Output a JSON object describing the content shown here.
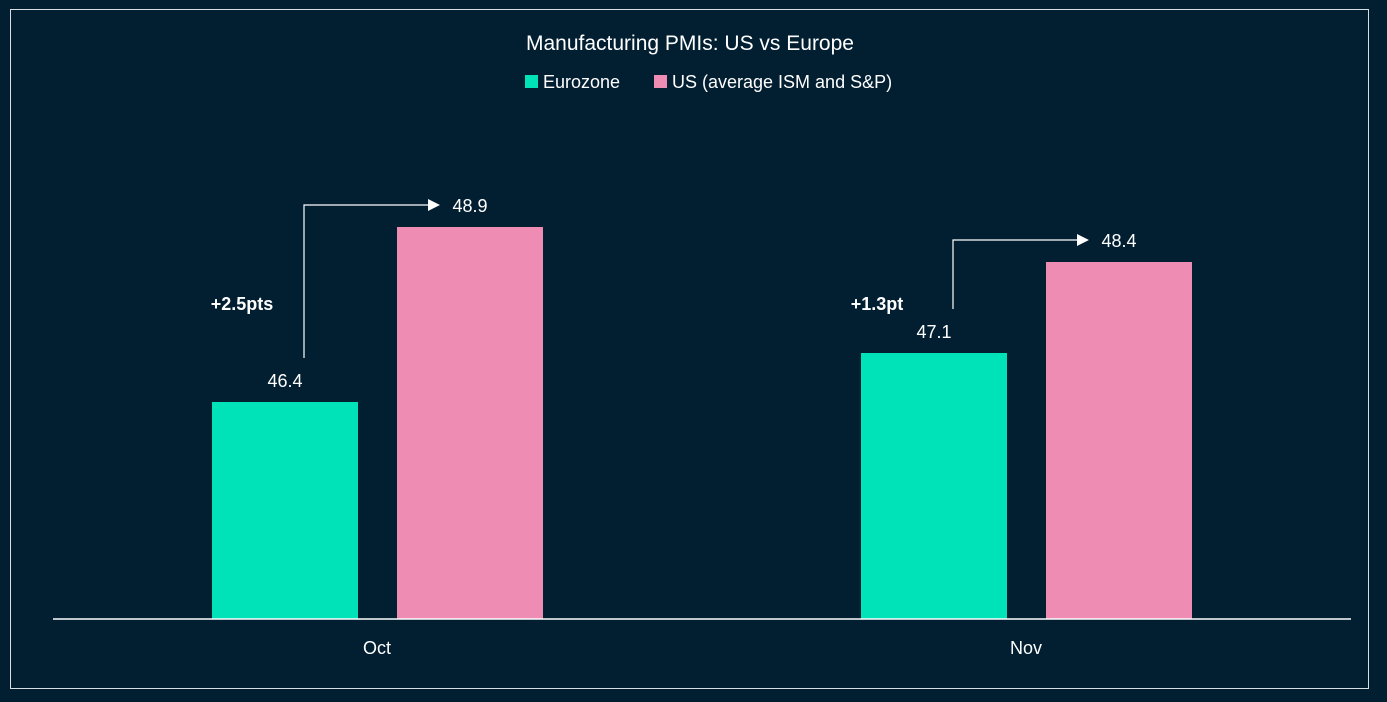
{
  "chart_data": {
    "type": "bar",
    "title": "Manufacturing PMIs: US vs Europe",
    "categories": [
      "Oct",
      "Nov"
    ],
    "series": [
      {
        "name": "Eurozone",
        "color": "#00e3b8",
        "values": [
          46.4,
          47.1
        ]
      },
      {
        "name": "US (average ISM and S&P)",
        "color": "#ee8cb3",
        "values": [
          48.9,
          48.4
        ]
      }
    ],
    "value_labels": [
      [
        "46.4",
        "47.1"
      ],
      [
        "48.9",
        "48.4"
      ]
    ],
    "annotations": [
      "+2.5pts",
      "+1.3pt"
    ],
    "xlabel": "",
    "ylabel": "",
    "ylim": [
      43.3,
      50.0
    ],
    "legend_position": "top-center",
    "grid": false
  }
}
